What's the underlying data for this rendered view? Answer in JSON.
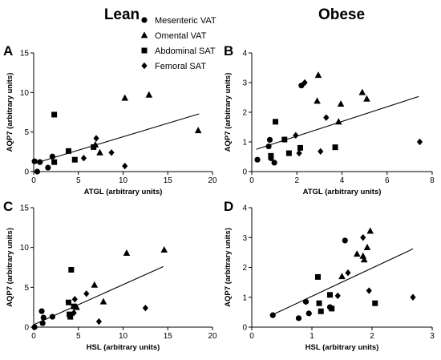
{
  "headers": {
    "left": "Lean",
    "right": "Obese"
  },
  "legend": [
    {
      "label": "Mesenteric VAT",
      "marker": "circle"
    },
    {
      "label": "Omental VAT",
      "marker": "triangle"
    },
    {
      "label": "Abdominal SAT",
      "marker": "square"
    },
    {
      "label": "Femoral SAT",
      "marker": "diamond"
    }
  ],
  "colors": {
    "marker": "#000000",
    "axis": "#000000",
    "background": "#ffffff"
  },
  "chart_data": [
    {
      "panel": "A",
      "type": "scatter",
      "xlabel": "ATGL (arbitrary units)",
      "ylabel": "AQP7 (arbitrary units)",
      "xlim": [
        0,
        20
      ],
      "ylim": [
        0,
        15
      ],
      "xticks": [
        0,
        5,
        10,
        15,
        20
      ],
      "yticks": [
        0,
        5,
        10,
        15
      ],
      "trendline": [
        [
          0,
          1.0
        ],
        [
          18.5,
          7.3
        ]
      ],
      "series": [
        {
          "name": "Mesenteric VAT",
          "marker": "circle",
          "points": [
            [
              0.1,
              1.3
            ],
            [
              0.4,
              0.0
            ],
            [
              0.7,
              1.2
            ],
            [
              1.6,
              0.5
            ],
            [
              2.1,
              1.9
            ]
          ]
        },
        {
          "name": "Omental VAT",
          "marker": "triangle",
          "points": [
            [
              6.9,
              3.4
            ],
            [
              7.4,
              2.4
            ],
            [
              10.2,
              9.3
            ],
            [
              12.9,
              9.7
            ],
            [
              18.4,
              5.2
            ]
          ]
        },
        {
          "name": "Abdominal SAT",
          "marker": "square",
          "points": [
            [
              2.3,
              7.2
            ],
            [
              2.3,
              1.2
            ],
            [
              3.9,
              2.6
            ],
            [
              4.6,
              1.5
            ],
            [
              6.7,
              3.1
            ]
          ]
        },
        {
          "name": "Femoral SAT",
          "marker": "diamond",
          "points": [
            [
              5.6,
              1.7
            ],
            [
              7.0,
              4.2
            ],
            [
              8.7,
              2.4
            ],
            [
              10.2,
              0.7
            ]
          ]
        }
      ]
    },
    {
      "panel": "B",
      "type": "scatter",
      "xlabel": "ATGL (arbitrary units)",
      "ylabel": "AQP7 (arbitrary units)",
      "xlim": [
        0,
        8
      ],
      "ylim": [
        0,
        4
      ],
      "xticks": [
        0,
        2,
        4,
        6,
        8
      ],
      "yticks": [
        0,
        1,
        2,
        3,
        4
      ],
      "trendline": [
        [
          0.2,
          0.75
        ],
        [
          7.4,
          2.53
        ]
      ],
      "series": [
        {
          "name": "Mesenteric VAT",
          "marker": "circle",
          "points": [
            [
              0.25,
              0.4
            ],
            [
              0.75,
              0.85
            ],
            [
              0.8,
              1.07
            ],
            [
              0.85,
              0.45
            ],
            [
              1.0,
              0.3
            ],
            [
              2.2,
              2.9
            ]
          ]
        },
        {
          "name": "Omental VAT",
          "marker": "triangle",
          "points": [
            [
              2.9,
              2.38
            ],
            [
              2.95,
              3.25
            ],
            [
              3.85,
              1.68
            ],
            [
              3.95,
              2.28
            ],
            [
              4.9,
              2.67
            ],
            [
              5.1,
              2.45
            ]
          ]
        },
        {
          "name": "Abdominal SAT",
          "marker": "square",
          "points": [
            [
              0.85,
              0.53
            ],
            [
              1.05,
              1.68
            ],
            [
              1.45,
              1.08
            ],
            [
              1.65,
              0.62
            ],
            [
              2.15,
              0.8
            ],
            [
              3.7,
              0.82
            ]
          ]
        },
        {
          "name": "Femoral SAT",
          "marker": "diamond",
          "points": [
            [
              1.95,
              1.22
            ],
            [
              2.1,
              0.62
            ],
            [
              2.35,
              3.0
            ],
            [
              3.05,
              0.68
            ],
            [
              3.3,
              1.82
            ],
            [
              7.45,
              1.0
            ]
          ]
        }
      ]
    },
    {
      "panel": "C",
      "type": "scatter",
      "xlabel": "HSL (arbitrary units)",
      "ylabel": "AQP7 (arbitrary units)",
      "xlim": [
        0,
        20
      ],
      "ylim": [
        0,
        15
      ],
      "xticks": [
        0,
        5,
        10,
        15,
        20
      ],
      "yticks": [
        0,
        5,
        10,
        15
      ],
      "trendline": [
        [
          0,
          0.3
        ],
        [
          14.5,
          7.6
        ]
      ],
      "series": [
        {
          "name": "Mesenteric VAT",
          "marker": "circle",
          "points": [
            [
              0.1,
              0.0
            ],
            [
              0.9,
              2.0
            ],
            [
              1.0,
              0.5
            ],
            [
              1.1,
              1.2
            ],
            [
              2.1,
              1.3
            ]
          ]
        },
        {
          "name": "Omental VAT",
          "marker": "triangle",
          "points": [
            [
              6.8,
              5.3
            ],
            [
              7.8,
              3.2
            ],
            [
              10.4,
              9.3
            ],
            [
              14.6,
              9.7
            ],
            [
              4.8,
              2.5
            ]
          ]
        },
        {
          "name": "Abdominal SAT",
          "marker": "square",
          "points": [
            [
              3.9,
              3.1
            ],
            [
              4.1,
              1.3
            ],
            [
              4.2,
              7.2
            ],
            [
              4.5,
              2.6
            ],
            [
              4.0,
              1.6
            ]
          ]
        },
        {
          "name": "Femoral SAT",
          "marker": "diamond",
          "points": [
            [
              4.6,
              3.5
            ],
            [
              5.9,
              4.2
            ],
            [
              7.3,
              0.7
            ],
            [
              12.5,
              2.4
            ],
            [
              4.5,
              1.8
            ]
          ]
        }
      ]
    },
    {
      "panel": "D",
      "type": "scatter",
      "xlabel": "HSL (arbitrary units)",
      "ylabel": "AQP7 (arbitrary units)",
      "xlim": [
        0,
        3
      ],
      "ylim": [
        0,
        4
      ],
      "xticks": [
        0,
        1,
        2,
        3
      ],
      "yticks": [
        0,
        1,
        2,
        3,
        4
      ],
      "trendline": [
        [
          0.33,
          0.4
        ],
        [
          2.68,
          2.62
        ]
      ],
      "series": [
        {
          "name": "Mesenteric VAT",
          "marker": "circle",
          "points": [
            [
              0.35,
              0.4
            ],
            [
              0.78,
              0.3
            ],
            [
              0.9,
              0.85
            ],
            [
              0.95,
              0.46
            ],
            [
              1.3,
              0.67
            ],
            [
              1.55,
              2.9
            ]
          ]
        },
        {
          "name": "Omental VAT",
          "marker": "triangle",
          "points": [
            [
              1.5,
              1.7
            ],
            [
              1.75,
              2.45
            ],
            [
              1.85,
              2.38
            ],
            [
              1.87,
              2.26
            ],
            [
              1.92,
              2.67
            ],
            [
              1.97,
              3.22
            ]
          ]
        },
        {
          "name": "Abdominal SAT",
          "marker": "square",
          "points": [
            [
              1.1,
              1.68
            ],
            [
              1.12,
              0.8
            ],
            [
              1.15,
              0.53
            ],
            [
              1.3,
              1.08
            ],
            [
              1.33,
              0.62
            ],
            [
              2.05,
              0.8
            ]
          ]
        },
        {
          "name": "Femoral SAT",
          "marker": "diamond",
          "points": [
            [
              1.43,
              1.05
            ],
            [
              1.6,
              1.82
            ],
            [
              1.85,
              3.0
            ],
            [
              1.95,
              1.22
            ],
            [
              2.68,
              1.0
            ]
          ]
        }
      ]
    }
  ]
}
